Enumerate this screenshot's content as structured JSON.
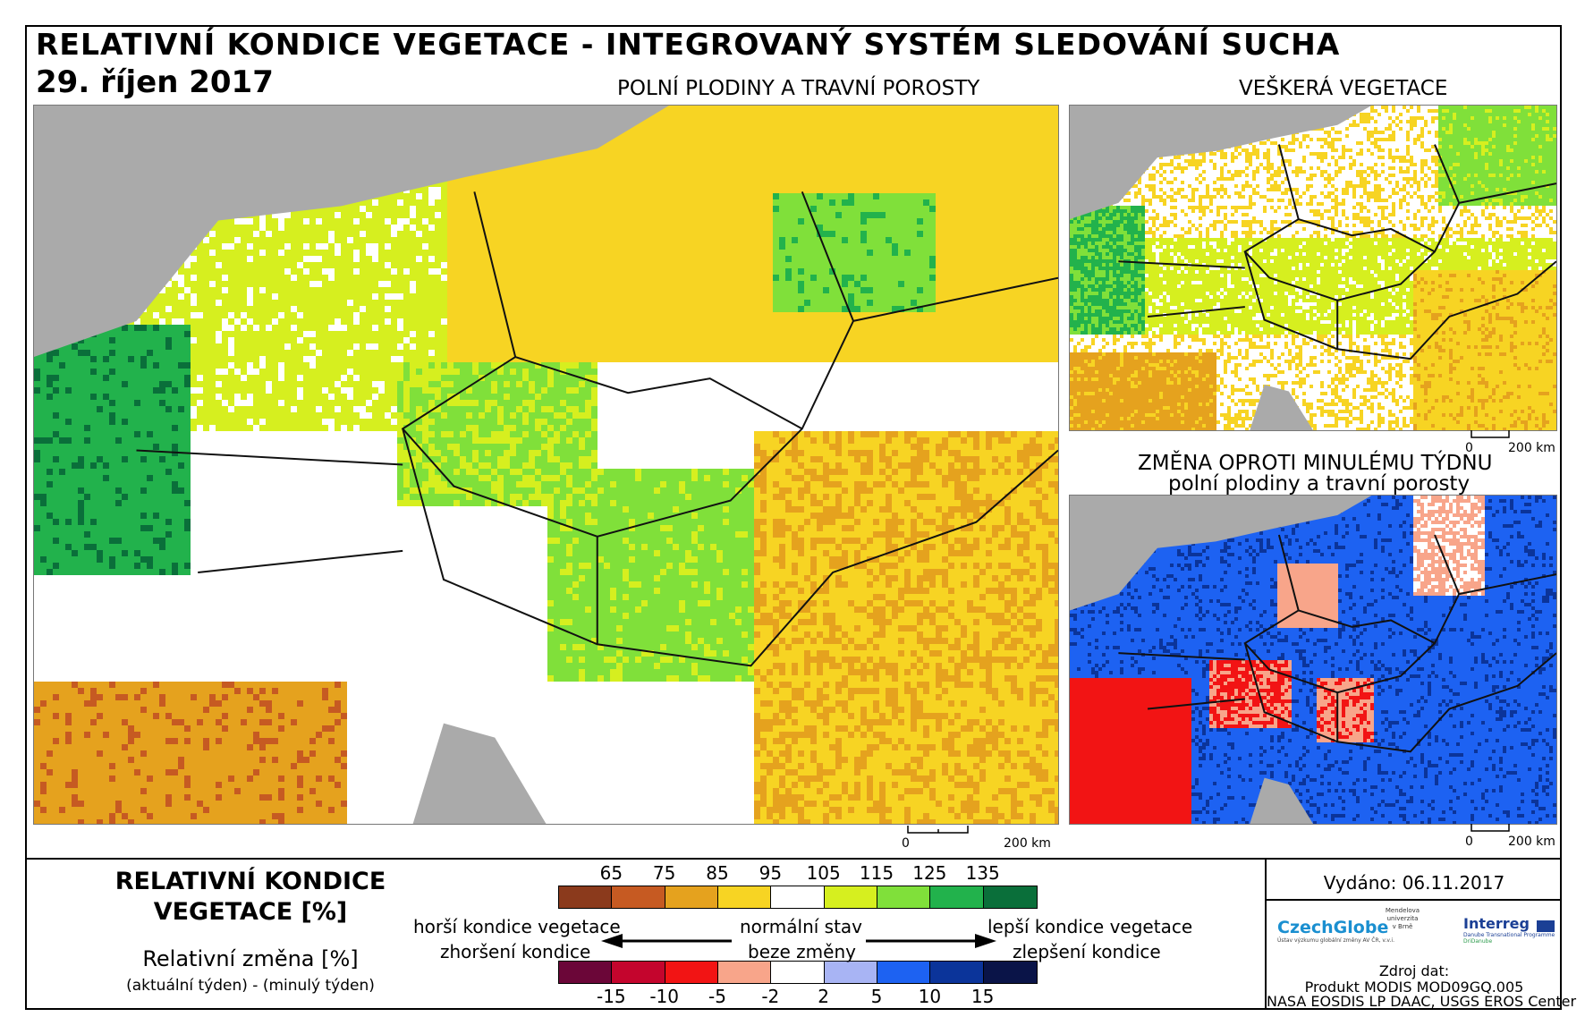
{
  "title": "RELATIVNÍ KONDICE VEGETACE - INTEGROVANÝ SYSTÉM SLEDOVÁNÍ SUCHA",
  "date": "29. říjen 2017",
  "panels": {
    "main_title": "POLNÍ PLODINY A TRAVNÍ POROSTY",
    "veg_title": "VEŠKERÁ VEGETACE",
    "change_title_1": "ZMĚNA OPROTI MINULÉMU TÝDNU",
    "change_title_2": "polní plodiny a travní porosty"
  },
  "scalebar": {
    "zero": "0",
    "max": "200 km"
  },
  "legend": {
    "title_1": "RELATIVNÍ KONDICE",
    "title_2": "VEGETACE [%]",
    "change_label": "Relativní změna [%]",
    "change_formula": "(aktuální týden) - (minulý týden)",
    "condition_ticks": [
      "65",
      "75",
      "85",
      "95",
      "105",
      "115",
      "125",
      "135"
    ],
    "condition_colors": [
      "#8b3a1c",
      "#c65a22",
      "#e5a21e",
      "#f7d423",
      "#ffffff",
      "#d6ef1f",
      "#80e03a",
      "#22b24c",
      "#0a6f3a"
    ],
    "change_ticks": [
      "-15",
      "-10",
      "-5",
      "-2",
      "2",
      "5",
      "10",
      "15"
    ],
    "change_colors": [
      "#6b0638",
      "#c4052d",
      "#f21414",
      "#f8a58a",
      "#ffffff",
      "#a8b4f4",
      "#1d62f2",
      "#0b349a",
      "#0a1448"
    ],
    "worse_condition": "horší kondice vegetace",
    "worse_change": "zhoršení kondice",
    "normal_state": "normální stav",
    "no_change": "beze změny",
    "better_condition": "lepší kondice vegetace",
    "better_change": "zlepšení kondice"
  },
  "issued": "Vydáno: 06.11.2017",
  "logos": {
    "czechglobe": "CzechGlobe",
    "czechglobe_sub": "Ústav výzkumu globální změny AV ČR, v.v.i.",
    "mendel": "Mendelova univerzita v Brně",
    "interreg": "Interreg",
    "interreg_sub": "Danube Transnational Programme",
    "dridanube": "DriDanube"
  },
  "source": {
    "label": "Zdroj dat:",
    "line1": "Produkt MODIS MOD09GQ.005",
    "line2": "NASA EOSDIS LP DAAC, USGS EROS Center"
  }
}
